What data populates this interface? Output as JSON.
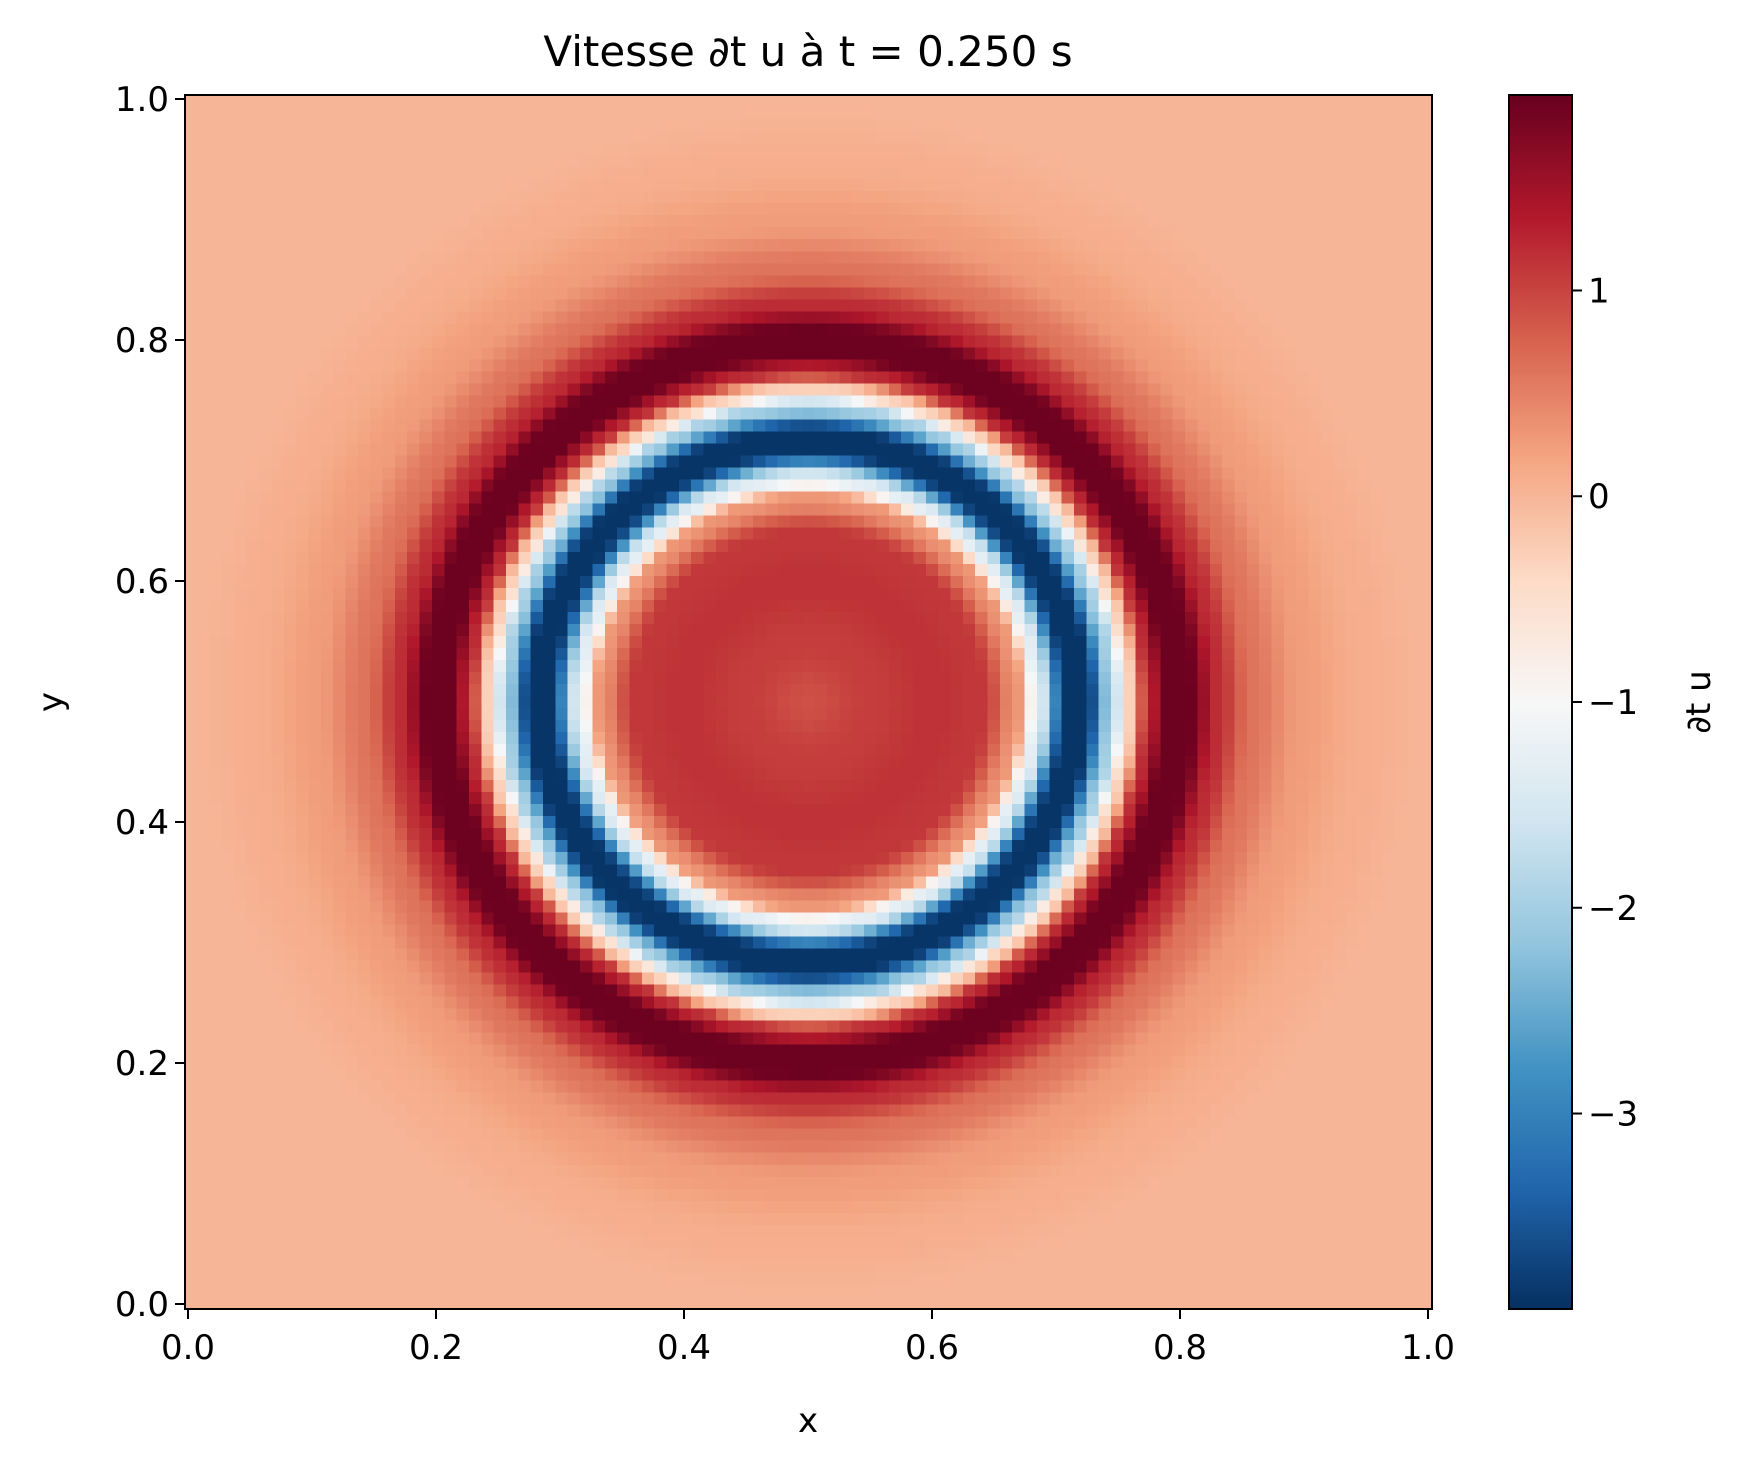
{
  "chart_data": {
    "type": "heatmap",
    "title": "Vitesse ∂t u à t = 0.250 s",
    "xlabel": "x",
    "ylabel": "y",
    "xlim": [
      0.0,
      1.0
    ],
    "ylim": [
      0.0,
      1.0
    ],
    "x_ticks": [
      "0.0",
      "0.2",
      "0.4",
      "0.6",
      "0.8",
      "1.0"
    ],
    "y_ticks": [
      "0.0",
      "0.2",
      "0.4",
      "0.6",
      "0.8",
      "1.0"
    ],
    "grid": false,
    "colormap": "RdBu_r",
    "grid_resolution": 101,
    "field": {
      "description": "radially symmetric field centred at (0.5, 0.5)",
      "center": [
        0.5,
        0.5
      ],
      "radial_profile_r": [
        0.0,
        0.05,
        0.1,
        0.14,
        0.17,
        0.185,
        0.21,
        0.225,
        0.245,
        0.26,
        0.275,
        0.29,
        0.31,
        0.33,
        0.36,
        0.4,
        0.45,
        0.5,
        0.72
      ],
      "radial_profile_value": [
        0.9,
        1.05,
        1.15,
        1.1,
        0.3,
        -1.3,
        -3.9,
        -3.9,
        -2.0,
        -0.3,
        1.2,
        1.9,
        1.9,
        1.2,
        0.6,
        0.25,
        0.08,
        0.0,
        0.0
      ]
    },
    "colorbar": {
      "label": "∂t u",
      "vmin": -3.95,
      "vmax": 1.95,
      "ticks": [
        1,
        0,
        -1,
        -2,
        -3
      ],
      "tick_labels": [
        "1",
        "0",
        "−1",
        "−2",
        "−3"
      ]
    }
  }
}
